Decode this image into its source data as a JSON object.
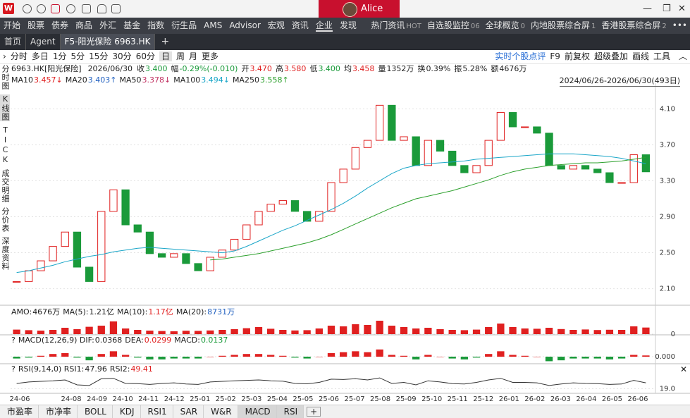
{
  "titlebar": {
    "user": "Alice"
  },
  "menu": {
    "items": [
      "开始",
      "股票",
      "债券",
      "商品",
      "外汇",
      "基金",
      "指数",
      "衍生品",
      "AMS",
      "Advisor",
      "宏观",
      "资讯",
      "企业",
      "发现"
    ],
    "active": 12,
    "right": [
      {
        "label": "热门资讯",
        "badge": "HOT"
      },
      {
        "label": "自选股监控",
        "badge": "06"
      },
      {
        "label": "全球概览",
        "badge": "0"
      },
      {
        "label": "内地股票综合屏",
        "badge": "1"
      },
      {
        "label": "香港股票综合屏",
        "badge": "2"
      }
    ]
  },
  "tabs": [
    "首页",
    "Agent",
    "F5-阳光保险 6963.HK"
  ],
  "active_tab": 2,
  "periods": [
    "分时",
    "多日",
    "1分",
    "5分",
    "15分",
    "30分",
    "60分",
    "日",
    "周",
    "月",
    "更多"
  ],
  "active_period": 7,
  "tools": [
    "实时个股点评",
    "F9",
    "前复权",
    "超级叠加",
    "画线",
    "工具"
  ],
  "sidebar": [
    "分时图",
    "K线图",
    "TICK",
    "成交明细",
    "分价表",
    "深度资料"
  ],
  "active_side": 1,
  "quote": {
    "name": "6963.HK[阳光保险]",
    "date": "2026/06/30",
    "fields": [
      {
        "label": "收",
        "value": "3.400",
        "color": "#1a9a3a"
      },
      {
        "label": "幅",
        "value": "-0.29%(-0.010)",
        "color": "#1a9a3a"
      },
      {
        "label": "开",
        "value": "3.470",
        "color": "#e02020"
      },
      {
        "label": "高",
        "value": "3.580",
        "color": "#e02020"
      },
      {
        "label": "低",
        "value": "3.400",
        "color": "#1a9a3a"
      },
      {
        "label": "均",
        "value": "3.458",
        "color": "#e02020"
      },
      {
        "label": "量",
        "value": "1352万",
        "color": "#222222"
      },
      {
        "label": "换",
        "value": "0.39%",
        "color": "#222222"
      },
      {
        "label": "振",
        "value": "5.28%",
        "color": "#222222"
      },
      {
        "label": "额",
        "value": "4676万",
        "color": "#222222"
      }
    ]
  },
  "ma_legend": [
    {
      "label": "MA10",
      "value": "3.457↓",
      "color": "#e02020"
    },
    {
      "label": "MA20",
      "value": "3.403↑",
      "color": "#1f5fbf"
    },
    {
      "label": "MA50",
      "value": "3.378↓",
      "color": "#c03060"
    },
    {
      "label": "MA100",
      "value": "3.494↓",
      "color": "#1aa6c8"
    },
    {
      "label": "MA250",
      "value": "3.558↑",
      "color": "#2ca02c"
    }
  ],
  "range": "2024/06/26-2026/06/30(493日)",
  "amo_legend": [
    {
      "label": "AMO:",
      "value": "4676万",
      "color": "#222222"
    },
    {
      "label": "MA(5):",
      "value": "1.21亿",
      "color": "#222222"
    },
    {
      "label": "MA(10):",
      "value": "1.17亿",
      "color": "#e02020"
    },
    {
      "label": "MA(20):",
      "value": "8731万",
      "color": "#1f5fbf"
    }
  ],
  "macd_legend": [
    {
      "label": "MACD(12,26,9) DIF:",
      "value": "0.0368",
      "color": "#222222"
    },
    {
      "label": "DEA:",
      "value": "0.0299",
      "color": "#e02020"
    },
    {
      "label": "MACD:",
      "value": "0.0137",
      "color": "#1a9a3a"
    }
  ],
  "rsi_legend": [
    {
      "label": "RSI(9,14,0) RSI1:",
      "value": "47.96",
      "color": "#222222"
    },
    {
      "label": "RSI2:",
      "value": "49.41",
      "color": "#e02020"
    }
  ],
  "indicator_tabs": [
    "市盈率",
    "市净率",
    "BOLL",
    "KDJ",
    "RSI1",
    "SAR",
    "W&R",
    "MACD",
    "RSI"
  ],
  "active_indicators": [
    7,
    8
  ],
  "chart_data": [
    {
      "type": "candle",
      "ylim": [
        1.94,
        4.37
      ],
      "yticks": [
        {
          "value": 2.1,
          "label": "2.10"
        },
        {
          "value": 2.5,
          "label": "2.50"
        },
        {
          "value": 2.9,
          "label": "2.90"
        },
        {
          "value": 3.3,
          "label": "3.30"
        },
        {
          "value": 3.7,
          "label": "3.70"
        },
        {
          "value": 4.1,
          "label": "4.10"
        }
      ],
      "grid": true,
      "up_color": "#e02020",
      "down_color": "#1a9a3a",
      "x_axis_labels": [
        "24-06",
        null,
        "24-08",
        "24-09",
        "24-10",
        "24-11",
        "24-12",
        "25-01",
        "25-02",
        "25-03",
        "25-04",
        "25-05",
        "25-06",
        "25-07",
        "25-08",
        "25-09",
        "25-10",
        "25-11",
        "25-12",
        "26-01",
        "26-02",
        "26-03",
        "26-04",
        "26-05",
        "26-06"
      ],
      "series": [
        {
          "color": "#e02020",
          "values": [
            2.18,
            2.3,
            2.41,
            2.57,
            2.73,
            2.34,
            2.18,
            2.96,
            3.2,
            2.81,
            2.73,
            2.49,
            2.45,
            2.49,
            2.38,
            2.3,
            2.45,
            2.53,
            2.65,
            2.81,
            2.96,
            3.04,
            3.08,
            2.96,
            2.85,
            2.96,
            3.28,
            3.43,
            3.67,
            3.75,
            4.14,
            3.75,
            3.79,
            3.47,
            3.75,
            3.63,
            3.47,
            3.39,
            3.47,
            3.75,
            4.06,
            3.9,
            3.9,
            3.83,
            3.47,
            3.43,
            3.47,
            3.43,
            3.39,
            3.28,
            3.28,
            3.59,
            3.4
          ]
        },
        {
          "color": "#1aa6c8",
          "values": [
            2.28,
            2.3,
            2.33,
            2.36,
            2.4,
            2.43,
            2.46,
            2.48,
            2.51,
            2.53,
            2.55,
            2.56,
            2.55,
            2.54,
            2.53,
            2.52,
            2.51,
            2.5,
            2.52,
            2.57,
            2.63,
            2.69,
            2.75,
            2.8,
            2.86,
            2.92,
            2.98,
            3.05,
            3.13,
            3.22,
            3.3,
            3.38,
            3.44,
            3.47,
            3.49,
            3.5,
            3.51,
            3.52,
            3.54,
            3.55,
            3.56,
            3.57,
            3.58,
            3.59,
            3.6,
            3.6,
            3.6,
            3.59,
            3.58,
            3.57,
            3.55,
            3.52,
            3.49
          ]
        },
        {
          "color": "#2ca02c",
          "values": [
            null,
            null,
            null,
            null,
            null,
            null,
            null,
            null,
            null,
            null,
            null,
            null,
            null,
            null,
            null,
            null,
            2.42,
            2.43,
            2.45,
            2.47,
            2.49,
            2.52,
            2.55,
            2.58,
            2.61,
            2.65,
            2.7,
            2.76,
            2.82,
            2.88,
            2.94,
            3.0,
            3.05,
            3.1,
            3.13,
            3.16,
            3.19,
            3.23,
            3.27,
            3.31,
            3.36,
            3.4,
            3.43,
            3.45,
            3.47,
            3.48,
            3.49,
            3.5,
            3.5,
            3.51,
            3.52,
            3.54,
            3.56
          ]
        }
      ]
    },
    {
      "type": "bar",
      "ylim": [
        0,
        12000
      ],
      "yticks": [
        0
      ],
      "color": "#e02020",
      "values": [
        3200,
        2800,
        2500,
        3000,
        4500,
        3500,
        5200,
        6000,
        9000,
        4000,
        3000,
        2500,
        2200,
        2000,
        2400,
        2300,
        2600,
        3000,
        3500,
        4200,
        5000,
        3800,
        3000,
        2600,
        2800,
        4000,
        6000,
        5500,
        7000,
        6500,
        9500,
        6000,
        5000,
        4000,
        4500,
        3500,
        3000,
        2800,
        3200,
        5000,
        7500,
        5000,
        4000,
        3800,
        4500,
        3600,
        3000,
        3300,
        2900,
        3100,
        3000,
        5500,
        4676
      ]
    },
    {
      "type": "bar",
      "ylim": [
        -0.07,
        0.125
      ],
      "yticks": [
        {
          "value": 0,
          "label": "0.000"
        }
      ],
      "up_color": "#e02020",
      "down_color": "#1a9a3a",
      "values": [
        -0.02,
        -0.01,
        0.01,
        0.03,
        0.04,
        -0.01,
        -0.04,
        0.03,
        0.06,
        0.02,
        -0.01,
        -0.03,
        -0.03,
        -0.02,
        -0.02,
        -0.02,
        0,
        0.01,
        0.02,
        0.03,
        0.03,
        0.02,
        0.01,
        -0.01,
        -0.02,
        0,
        0.04,
        0.05,
        0.06,
        0.05,
        0.08,
        0.02,
        0.01,
        -0.03,
        0.02,
        0,
        -0.02,
        -0.03,
        -0.01,
        0.03,
        0.06,
        0.02,
        0.01,
        0,
        -0.05,
        -0.04,
        -0.02,
        -0.02,
        -0.02,
        -0.03,
        -0.02,
        0.02,
        0.0137
      ]
    },
    {
      "type": "line",
      "ylim": [
        0,
        100
      ],
      "yticks": [
        {
          "value": 19,
          "label": "19.0"
        }
      ],
      "color": "#333333",
      "values": [
        45,
        52,
        55,
        58,
        62,
        38,
        35,
        68,
        70,
        45,
        44,
        40,
        45,
        48,
        42,
        40,
        52,
        55,
        58,
        60,
        62,
        58,
        56,
        45,
        43,
        50,
        66,
        64,
        68,
        62,
        72,
        45,
        50,
        38,
        58,
        52,
        44,
        42,
        50,
        62,
        70,
        50,
        50,
        48,
        35,
        42,
        48,
        45,
        44,
        40,
        42,
        60,
        47.96
      ]
    }
  ]
}
